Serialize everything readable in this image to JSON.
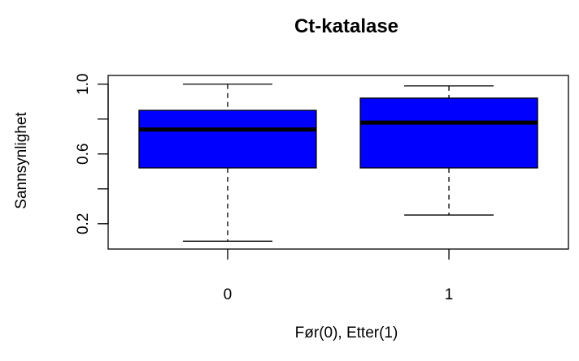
{
  "chart_data": {
    "type": "boxplot",
    "title": "Ct-katalase",
    "xlabel": "Før(0), Etter(1)",
    "ylabel": "Sannsynlighet",
    "categories": [
      "0",
      "1"
    ],
    "boxes": [
      {
        "category": "0",
        "whisker_low": 0.1,
        "q1": 0.52,
        "median": 0.74,
        "q3": 0.85,
        "whisker_high": 1.0
      },
      {
        "category": "1",
        "whisker_low": 0.25,
        "q1": 0.52,
        "median": 0.78,
        "q3": 0.92,
        "whisker_high": 0.99
      }
    ],
    "ylim": [
      0.055,
      1.05
    ],
    "yticks": [
      0.2,
      0.4,
      0.6,
      0.8,
      1.0
    ],
    "ytick_labels": [
      "0.2",
      "",
      "0.6",
      "",
      "1.0"
    ],
    "box_color": "#0000FF",
    "median_color": "#000000",
    "grid": false
  }
}
